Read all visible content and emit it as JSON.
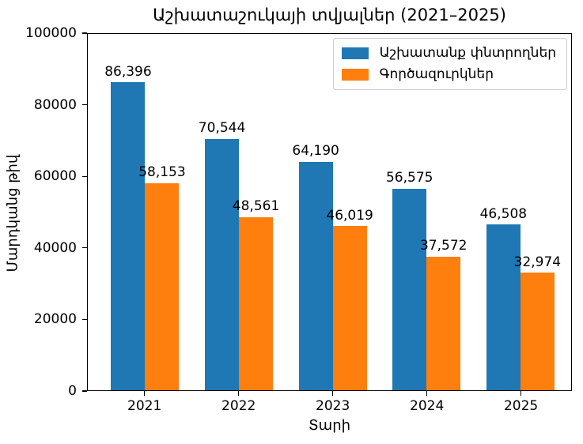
{
  "title": "Աշխատաշուկայի տվյալներ (2021–2025)",
  "chart_data": {
    "type": "bar",
    "title": "Աշխատաշուկայի տվյալներ (2021–2025)",
    "xlabel": "Տարի",
    "ylabel": "Մարդկանց թիվ",
    "categories": [
      "2021",
      "2022",
      "2023",
      "2024",
      "2025"
    ],
    "series": [
      {
        "name": "Աշխատանք փնտրողներ",
        "color": "#1f77b4",
        "values": [
          86396,
          70544,
          64190,
          56575,
          46508
        ],
        "labels": [
          "86,396",
          "70,544",
          "64,190",
          "56,575",
          "46,508"
        ]
      },
      {
        "name": "Գործազուրկներ",
        "color": "#ff7f0e",
        "values": [
          58153,
          48561,
          46019,
          37572,
          32974
        ],
        "labels": [
          "58,153",
          "48,561",
          "46,019",
          "37,572",
          "32,974"
        ]
      }
    ],
    "ylim": [
      0,
      100000
    ],
    "yticks": [
      0,
      20000,
      40000,
      60000,
      80000,
      100000
    ],
    "ytick_labels": [
      "0",
      "20000",
      "40000",
      "60000",
      "80000",
      "100000"
    ],
    "grid": false,
    "legend_position": "upper right",
    "bar_value_label_color": "#000000",
    "axis_color": "#000000",
    "legend_border_color": "#cccccc"
  }
}
